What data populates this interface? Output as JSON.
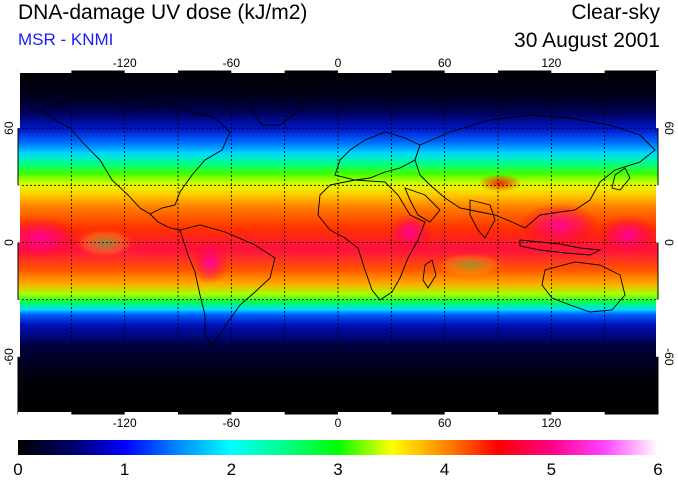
{
  "header": {
    "title": "DNA-damage UV dose (kJ/m2)",
    "source": "MSR - KNMI",
    "condition": "Clear-sky",
    "date": "30 August 2001"
  },
  "map": {
    "longitude_ticks": [
      "-120",
      "-60",
      "0",
      "60",
      "120"
    ],
    "longitude_values": [
      -120,
      -60,
      0,
      60,
      120
    ],
    "latitude_ticks": [
      "60",
      "0",
      "-60"
    ],
    "latitude_values": [
      60,
      0,
      -60
    ],
    "grid_lon": [
      -150,
      -120,
      -90,
      -60,
      -30,
      0,
      30,
      60,
      90,
      120,
      150
    ],
    "grid_lat": [
      60,
      30,
      0,
      -30,
      -60
    ],
    "lon_range": [
      -180,
      180
    ],
    "lat_range": [
      -90,
      90
    ]
  },
  "colorbar": {
    "labels": [
      "0",
      "1",
      "2",
      "3",
      "4",
      "5",
      "6"
    ],
    "values": [
      0,
      1,
      2,
      3,
      4,
      5,
      6
    ],
    "stops": [
      {
        "v": 0.0,
        "c": "#000000"
      },
      {
        "v": 0.5,
        "c": "#000066"
      },
      {
        "v": 1.0,
        "c": "#0000ff"
      },
      {
        "v": 1.5,
        "c": "#0088ff"
      },
      {
        "v": 2.0,
        "c": "#00ffff"
      },
      {
        "v": 2.5,
        "c": "#00ff88"
      },
      {
        "v": 3.0,
        "c": "#00ff00"
      },
      {
        "v": 3.5,
        "c": "#ffff00"
      },
      {
        "v": 4.0,
        "c": "#ff8800"
      },
      {
        "v": 4.5,
        "c": "#ff0000"
      },
      {
        "v": 5.0,
        "c": "#ff0088"
      },
      {
        "v": 5.5,
        "c": "#ff44ff"
      },
      {
        "v": 6.0,
        "c": "#ffffff"
      }
    ]
  }
}
